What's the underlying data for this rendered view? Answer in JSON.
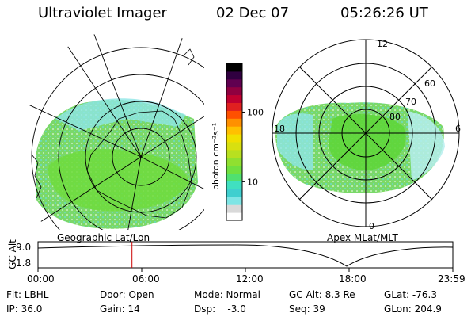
{
  "header": {
    "title": "Ultraviolet Imager",
    "date": "02 Dec 07",
    "time": "05:26:26 UT"
  },
  "colorbar": {
    "label": "photon cm⁻²s⁻¹",
    "ticks": [
      "100",
      "10"
    ],
    "tick_values": [
      100,
      10
    ],
    "log_min": 2.8,
    "log_max": 500,
    "colors": [
      "#ffffff",
      "#d9d9d9",
      "#7fe5e5",
      "#3fcfcf",
      "#40e0c0",
      "#50e070",
      "#70e040",
      "#90e030",
      "#b8e020",
      "#d8e010",
      "#f0e000",
      "#ffc000",
      "#ff9000",
      "#ff5000",
      "#e02020",
      "#c00030",
      "#900040",
      "#600050",
      "#300040",
      "#000000"
    ]
  },
  "left_map": {
    "caption": "Geographic Lat/Lon"
  },
  "right_map": {
    "caption": "Apex MLat/MLT",
    "mlt_labels": [
      "12",
      "18",
      "6",
      "0"
    ],
    "mlat_labels": [
      "60",
      "70",
      "80"
    ]
  },
  "altitude_plot": {
    "ylabel": "GC Alt",
    "yticks": [
      "9.0",
      "1.8"
    ],
    "xticks": [
      "00:00",
      "06:00",
      "12:00",
      "18:00",
      "23:59"
    ],
    "current_time_marker": "05:26",
    "marker_color": "#cc0000"
  },
  "footer": {
    "rows": [
      [
        "Flt: LBHL",
        "Door: Open",
        "Mode: Normal",
        "GC Alt: 8.3 Re",
        "GLat: -76.3"
      ],
      [
        "IP: 36.0",
        "Gain: 14",
        "Dsp:    -3.0",
        "Seq: 39",
        "GLon: 204.9"
      ]
    ]
  }
}
